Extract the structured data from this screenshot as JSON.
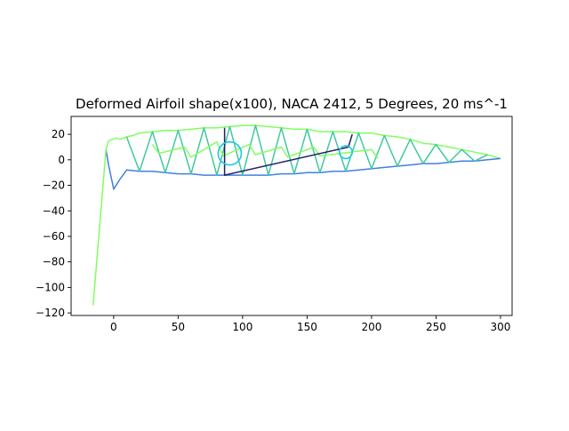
{
  "chart_data": {
    "type": "line",
    "title": "Deformed Airfoil shape(x100), NACA 2412, 5 Degrees, 20 ms^-1",
    "xlabel": "",
    "ylabel": "",
    "xlim": [
      -33,
      309
    ],
    "ylim": [
      -122,
      34
    ],
    "x_ticks": [
      0,
      50,
      100,
      150,
      200,
      250,
      300
    ],
    "x_tick_labels": [
      "0",
      "50",
      "100",
      "150",
      "200",
      "250",
      "300"
    ],
    "y_ticks": [
      -120,
      -100,
      -80,
      -60,
      -40,
      -20,
      0,
      20
    ],
    "y_tick_labels": [
      "−120",
      "−100",
      "−80",
      "−60",
      "−40",
      "−20",
      "0",
      "20"
    ],
    "grid": false,
    "legend": "none",
    "colors": {
      "upper_surface": "#80ff60",
      "lower_surface": "#4080e0",
      "truss": "#40c8a0",
      "hole": "#1ec8e0",
      "spar": "#202060"
    },
    "series": [
      {
        "color": "#80ff60",
        "x": [
          -6,
          -4,
          2,
          5,
          10,
          15,
          20,
          30,
          40,
          50,
          60,
          70,
          80,
          90,
          100,
          110,
          120,
          130,
          140,
          150,
          160,
          170,
          180,
          190,
          200,
          210,
          220,
          230,
          240,
          250,
          260,
          270,
          280,
          290,
          300
        ],
        "y": [
          8,
          15,
          17,
          16,
          18,
          19,
          21,
          22,
          23,
          23,
          24,
          25,
          25,
          26,
          27,
          27,
          26,
          25,
          24,
          24,
          22,
          22,
          22,
          21,
          21,
          19,
          18,
          16,
          13,
          12,
          10,
          8,
          6,
          4,
          1
        ]
      },
      {
        "color": "#4080e0",
        "x": [
          -6,
          -4,
          0,
          5,
          10,
          20,
          30,
          40,
          50,
          60,
          70,
          80,
          90,
          100,
          110,
          120,
          130,
          140,
          150,
          160,
          170,
          180,
          190,
          200,
          210,
          220,
          230,
          240,
          250,
          260,
          270,
          280,
          290,
          300
        ],
        "y": [
          8,
          -4,
          -23,
          -15,
          -8,
          -9,
          -9,
          -10,
          -11,
          -11,
          -12,
          -12,
          -12,
          -12,
          -12,
          -12,
          -11,
          -11,
          -10,
          -10,
          -9,
          -9,
          -8,
          -7,
          -6,
          -5,
          -4,
          -3,
          -3,
          -2,
          -1,
          -1,
          0,
          1
        ]
      },
      {
        "color": "#80ff60",
        "x": [
          -6,
          -16
        ],
        "y": [
          8,
          -114
        ]
      },
      {
        "color": "#40c8a0",
        "x": [
          10,
          20,
          30,
          40,
          50,
          60,
          70,
          80,
          90,
          100,
          110,
          120,
          130,
          140,
          150,
          160,
          170,
          180,
          190,
          200,
          210,
          220,
          230,
          240,
          250,
          260,
          270,
          280,
          290
        ],
        "y": [
          18,
          -9,
          22,
          -10,
          23,
          -11,
          25,
          -12,
          26,
          -12,
          27,
          -12,
          25,
          -11,
          24,
          -10,
          22,
          -9,
          21,
          -7,
          19,
          -5,
          16,
          -3,
          12,
          -2,
          8,
          -1,
          4
        ]
      },
      {
        "color": "#80ff60",
        "x": [
          30,
          35,
          55,
          60,
          80,
          85,
          105,
          110,
          130,
          135,
          155,
          160,
          200,
          205
        ],
        "y": [
          12,
          5,
          10,
          2,
          14,
          3,
          12,
          4,
          10,
          2,
          10,
          3,
          8,
          1
        ]
      },
      {
        "color": "#202060",
        "x": [
          86,
          86,
          182,
          185
        ],
        "y": [
          25,
          -12,
          10,
          20
        ]
      }
    ],
    "circles": [
      {
        "cx": 90,
        "cy": 5,
        "r": 9,
        "color": "#1ec8e0"
      },
      {
        "cx": 180,
        "cy": 6,
        "r": 5,
        "color": "#1ec8e0"
      }
    ]
  }
}
